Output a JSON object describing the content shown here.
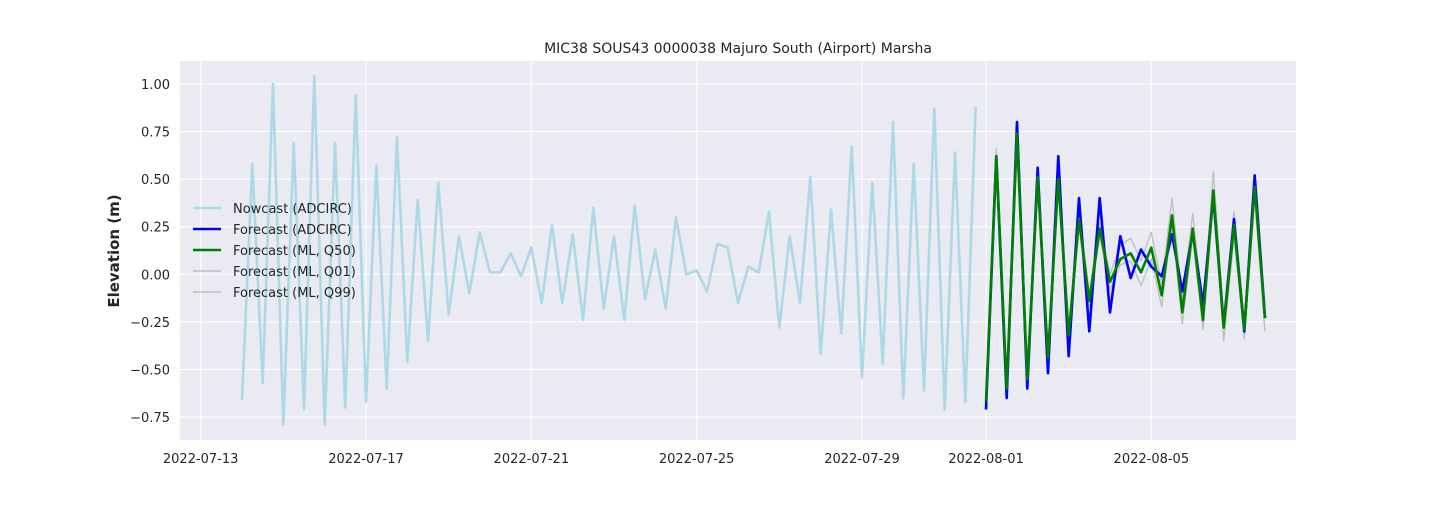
{
  "chart_data": {
    "type": "line",
    "title": "MIC38 SOUS43 0000038 Majuro South (Airport) Marsha",
    "xlabel": "",
    "ylabel": "Elevation (m)",
    "xlim": [
      "2022-07-12T12:00",
      "2022-08-08T12:00"
    ],
    "ylim": [
      -0.87,
      1.12
    ],
    "yticks": [
      -0.75,
      -0.5,
      -0.25,
      0.0,
      0.25,
      0.5,
      0.75,
      1.0
    ],
    "ytick_labels": [
      "−0.75",
      "−0.50",
      "−0.25",
      "0.00",
      "0.25",
      "0.50",
      "0.75",
      "1.00"
    ],
    "xticks": [
      "2022-07-13",
      "2022-07-17",
      "2022-07-21",
      "2022-07-25",
      "2022-07-29",
      "2022-08-01",
      "2022-08-05"
    ],
    "grid": true,
    "legend_position": "center-left",
    "background_color": "#eaeaf2",
    "series": [
      {
        "name": "Nowcast (ADCIRC)",
        "color": "#add8e6",
        "points": [
          [
            "2022-07-14T00:00",
            -0.66
          ],
          [
            "2022-07-14T06:00",
            0.58
          ],
          [
            "2022-07-14T12:00",
            -0.57
          ],
          [
            "2022-07-14T18:00",
            1.0
          ],
          [
            "2022-07-15T00:00",
            -0.79
          ],
          [
            "2022-07-15T06:00",
            0.69
          ],
          [
            "2022-07-15T12:00",
            -0.71
          ],
          [
            "2022-07-15T18:00",
            1.04
          ],
          [
            "2022-07-16T00:00",
            -0.79
          ],
          [
            "2022-07-16T06:00",
            0.69
          ],
          [
            "2022-07-16T12:00",
            -0.7
          ],
          [
            "2022-07-16T18:00",
            0.94
          ],
          [
            "2022-07-17T00:00",
            -0.67
          ],
          [
            "2022-07-17T06:00",
            0.57
          ],
          [
            "2022-07-17T12:00",
            -0.6
          ],
          [
            "2022-07-17T18:00",
            0.72
          ],
          [
            "2022-07-18T00:00",
            -0.46
          ],
          [
            "2022-07-18T06:00",
            0.39
          ],
          [
            "2022-07-18T12:00",
            -0.35
          ],
          [
            "2022-07-18T18:00",
            0.48
          ],
          [
            "2022-07-19T00:00",
            -0.21
          ],
          [
            "2022-07-19T06:00",
            0.2
          ],
          [
            "2022-07-19T12:00",
            -0.1
          ],
          [
            "2022-07-19T18:00",
            0.22
          ],
          [
            "2022-07-20T00:00",
            0.01
          ],
          [
            "2022-07-20T06:00",
            0.01
          ],
          [
            "2022-07-20T12:00",
            0.11
          ],
          [
            "2022-07-20T18:00",
            -0.01
          ],
          [
            "2022-07-21T00:00",
            0.14
          ],
          [
            "2022-07-21T06:00",
            -0.15
          ],
          [
            "2022-07-21T12:00",
            0.26
          ],
          [
            "2022-07-21T18:00",
            -0.15
          ],
          [
            "2022-07-22T00:00",
            0.21
          ],
          [
            "2022-07-22T06:00",
            -0.24
          ],
          [
            "2022-07-22T12:00",
            0.35
          ],
          [
            "2022-07-22T18:00",
            -0.18
          ],
          [
            "2022-07-23T00:00",
            0.2
          ],
          [
            "2022-07-23T06:00",
            -0.24
          ],
          [
            "2022-07-23T12:00",
            0.36
          ],
          [
            "2022-07-23T18:00",
            -0.13
          ],
          [
            "2022-07-24T00:00",
            0.13
          ],
          [
            "2022-07-24T06:00",
            -0.18
          ],
          [
            "2022-07-24T12:00",
            0.3
          ],
          [
            "2022-07-24T18:00",
            0.0
          ],
          [
            "2022-07-25T00:00",
            0.02
          ],
          [
            "2022-07-25T06:00",
            -0.09
          ],
          [
            "2022-07-25T12:00",
            0.16
          ],
          [
            "2022-07-25T18:00",
            0.14
          ],
          [
            "2022-07-26T00:00",
            -0.15
          ],
          [
            "2022-07-26T06:00",
            0.04
          ],
          [
            "2022-07-26T12:00",
            0.01
          ],
          [
            "2022-07-26T18:00",
            0.33
          ],
          [
            "2022-07-27T00:00",
            -0.28
          ],
          [
            "2022-07-27T06:00",
            0.2
          ],
          [
            "2022-07-27T12:00",
            -0.15
          ],
          [
            "2022-07-27T18:00",
            0.51
          ],
          [
            "2022-07-28T00:00",
            -0.42
          ],
          [
            "2022-07-28T06:00",
            0.34
          ],
          [
            "2022-07-28T12:00",
            -0.31
          ],
          [
            "2022-07-28T18:00",
            0.67
          ],
          [
            "2022-07-29T00:00",
            -0.54
          ],
          [
            "2022-07-29T06:00",
            0.48
          ],
          [
            "2022-07-29T12:00",
            -0.47
          ],
          [
            "2022-07-29T18:00",
            0.8
          ],
          [
            "2022-07-30T00:00",
            -0.65
          ],
          [
            "2022-07-30T06:00",
            0.58
          ],
          [
            "2022-07-30T12:00",
            -0.61
          ],
          [
            "2022-07-30T18:00",
            0.87
          ],
          [
            "2022-07-31T00:00",
            -0.71
          ],
          [
            "2022-07-31T06:00",
            0.64
          ],
          [
            "2022-07-31T12:00",
            -0.67
          ],
          [
            "2022-07-31T18:00",
            0.88
          ]
        ]
      },
      {
        "name": "Forecast (ADCIRC)",
        "color": "#0000ff",
        "points": [
          [
            "2022-08-01T00:00",
            -0.71
          ],
          [
            "2022-08-01T06:00",
            0.62
          ],
          [
            "2022-08-01T12:00",
            -0.65
          ],
          [
            "2022-08-01T18:00",
            0.8
          ],
          [
            "2022-08-02T00:00",
            -0.6
          ],
          [
            "2022-08-02T06:00",
            0.56
          ],
          [
            "2022-08-02T12:00",
            -0.52
          ],
          [
            "2022-08-02T18:00",
            0.62
          ],
          [
            "2022-08-03T00:00",
            -0.43
          ],
          [
            "2022-08-03T06:00",
            0.4
          ],
          [
            "2022-08-03T12:00",
            -0.3
          ],
          [
            "2022-08-03T18:00",
            0.4
          ],
          [
            "2022-08-04T00:00",
            -0.2
          ],
          [
            "2022-08-04T06:00",
            0.2
          ],
          [
            "2022-08-04T12:00",
            -0.02
          ],
          [
            "2022-08-04T18:00",
            0.13
          ],
          [
            "2022-08-05T00:00",
            0.04
          ],
          [
            "2022-08-05T06:00",
            -0.01
          ],
          [
            "2022-08-05T12:00",
            0.21
          ],
          [
            "2022-08-05T18:00",
            -0.09
          ],
          [
            "2022-08-06T00:00",
            0.22
          ],
          [
            "2022-08-06T06:00",
            -0.16
          ],
          [
            "2022-08-06T12:00",
            0.41
          ],
          [
            "2022-08-06T18:00",
            -0.27
          ],
          [
            "2022-08-07T00:00",
            0.29
          ],
          [
            "2022-08-07T06:00",
            -0.3
          ],
          [
            "2022-08-07T12:00",
            0.52
          ],
          [
            "2022-08-07T18:00",
            -0.23
          ]
        ]
      },
      {
        "name": "Forecast (ML, Q50)",
        "color": "#008000",
        "points": [
          [
            "2022-08-01T00:00",
            -0.67
          ],
          [
            "2022-08-01T06:00",
            0.62
          ],
          [
            "2022-08-01T12:00",
            -0.6
          ],
          [
            "2022-08-01T18:00",
            0.74
          ],
          [
            "2022-08-02T00:00",
            -0.55
          ],
          [
            "2022-08-02T06:00",
            0.51
          ],
          [
            "2022-08-02T12:00",
            -0.44
          ],
          [
            "2022-08-02T18:00",
            0.5
          ],
          [
            "2022-08-03T00:00",
            -0.32
          ],
          [
            "2022-08-03T06:00",
            0.29
          ],
          [
            "2022-08-03T12:00",
            -0.14
          ],
          [
            "2022-08-03T18:00",
            0.24
          ],
          [
            "2022-08-04T00:00",
            -0.04
          ],
          [
            "2022-08-04T06:00",
            0.08
          ],
          [
            "2022-08-04T12:00",
            0.11
          ],
          [
            "2022-08-04T18:00",
            0.01
          ],
          [
            "2022-08-05T00:00",
            0.14
          ],
          [
            "2022-08-05T06:00",
            -0.11
          ],
          [
            "2022-08-05T12:00",
            0.31
          ],
          [
            "2022-08-05T18:00",
            -0.2
          ],
          [
            "2022-08-06T00:00",
            0.24
          ],
          [
            "2022-08-06T06:00",
            -0.24
          ],
          [
            "2022-08-06T12:00",
            0.44
          ],
          [
            "2022-08-06T18:00",
            -0.28
          ],
          [
            "2022-08-07T00:00",
            0.26
          ],
          [
            "2022-08-07T06:00",
            -0.29
          ],
          [
            "2022-08-07T12:00",
            0.46
          ],
          [
            "2022-08-07T18:00",
            -0.23
          ]
        ]
      },
      {
        "name": "Forecast (ML, Q01)",
        "color": "#c0c0c0",
        "points": [
          [
            "2022-08-01T00:00",
            -0.69
          ],
          [
            "2022-08-01T06:00",
            0.6
          ],
          [
            "2022-08-01T12:00",
            -0.62
          ],
          [
            "2022-08-01T18:00",
            0.72
          ],
          [
            "2022-08-02T00:00",
            -0.58
          ],
          [
            "2022-08-02T06:00",
            0.49
          ],
          [
            "2022-08-02T12:00",
            -0.47
          ],
          [
            "2022-08-02T18:00",
            0.47
          ],
          [
            "2022-08-03T00:00",
            -0.35
          ],
          [
            "2022-08-03T06:00",
            0.26
          ],
          [
            "2022-08-03T12:00",
            -0.17
          ],
          [
            "2022-08-03T18:00",
            0.2
          ],
          [
            "2022-08-04T00:00",
            -0.08
          ],
          [
            "2022-08-04T06:00",
            0.05
          ],
          [
            "2022-08-04T12:00",
            0.07
          ],
          [
            "2022-08-04T18:00",
            -0.06
          ],
          [
            "2022-08-05T00:00",
            0.08
          ],
          [
            "2022-08-05T06:00",
            -0.17
          ],
          [
            "2022-08-05T12:00",
            0.27
          ],
          [
            "2022-08-05T18:00",
            -0.26
          ],
          [
            "2022-08-06T00:00",
            0.2
          ],
          [
            "2022-08-06T06:00",
            -0.29
          ],
          [
            "2022-08-06T12:00",
            0.38
          ],
          [
            "2022-08-06T18:00",
            -0.35
          ],
          [
            "2022-08-07T00:00",
            0.2
          ],
          [
            "2022-08-07T06:00",
            -0.34
          ],
          [
            "2022-08-07T12:00",
            0.4
          ],
          [
            "2022-08-07T18:00",
            -0.3
          ]
        ]
      },
      {
        "name": "Forecast (ML, Q99)",
        "color": "#c0c0c0",
        "points": [
          [
            "2022-08-01T00:00",
            -0.64
          ],
          [
            "2022-08-01T06:00",
            0.66
          ],
          [
            "2022-08-01T12:00",
            -0.57
          ],
          [
            "2022-08-01T18:00",
            0.76
          ],
          [
            "2022-08-02T00:00",
            -0.51
          ],
          [
            "2022-08-02T06:00",
            0.54
          ],
          [
            "2022-08-02T12:00",
            -0.4
          ],
          [
            "2022-08-02T18:00",
            0.53
          ],
          [
            "2022-08-03T00:00",
            -0.28
          ],
          [
            "2022-08-03T06:00",
            0.33
          ],
          [
            "2022-08-03T12:00",
            -0.1
          ],
          [
            "2022-08-03T18:00",
            0.27
          ],
          [
            "2022-08-04T00:00",
            0.0
          ],
          [
            "2022-08-04T06:00",
            0.15
          ],
          [
            "2022-08-04T12:00",
            0.19
          ],
          [
            "2022-08-04T18:00",
            0.07
          ],
          [
            "2022-08-05T00:00",
            0.22
          ],
          [
            "2022-08-05T06:00",
            -0.05
          ],
          [
            "2022-08-05T12:00",
            0.4
          ],
          [
            "2022-08-05T18:00",
            -0.14
          ],
          [
            "2022-08-06T00:00",
            0.32
          ],
          [
            "2022-08-06T06:00",
            -0.19
          ],
          [
            "2022-08-06T12:00",
            0.54
          ],
          [
            "2022-08-06T18:00",
            -0.22
          ],
          [
            "2022-08-07T00:00",
            0.33
          ],
          [
            "2022-08-07T06:00",
            -0.24
          ],
          [
            "2022-08-07T12:00",
            0.5
          ],
          [
            "2022-08-07T18:00",
            -0.16
          ]
        ]
      }
    ]
  }
}
